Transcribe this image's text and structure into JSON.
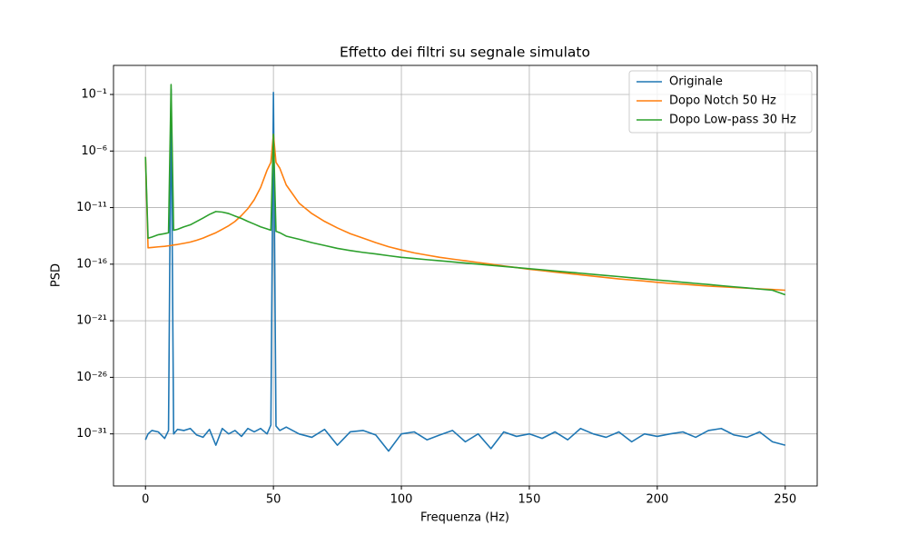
{
  "chart_data": {
    "type": "line",
    "title": "Effetto dei filtri su segnale simulato",
    "xlabel": "Frequenza (Hz)",
    "ylabel": "PSD",
    "yscale": "log",
    "grid": true,
    "legend": "upper right",
    "xlim": [
      -12.5,
      262.5
    ],
    "xticks": [
      0,
      50,
      100,
      150,
      200,
      250
    ],
    "ylim": [
      2.5e-36,
      37
    ],
    "yticks": [
      {
        "value": 0.1,
        "label": "10⁻¹"
      },
      {
        "value": 1e-06,
        "label": "10⁻⁶"
      },
      {
        "value": 1e-11,
        "label": "10⁻¹¹"
      },
      {
        "value": 1e-16,
        "label": "10⁻¹⁶"
      },
      {
        "value": 1e-21,
        "label": "10⁻²¹"
      },
      {
        "value": 1e-26,
        "label": "10⁻²⁶"
      },
      {
        "value": 1e-31,
        "label": "10⁻³¹"
      }
    ],
    "x": [
      0,
      1,
      2.5,
      5,
      7.5,
      9,
      10,
      11,
      12.5,
      15,
      17.5,
      20,
      22.5,
      25,
      27.5,
      30,
      32.5,
      35,
      37.5,
      40,
      42.5,
      45,
      47.5,
      49,
      50,
      51,
      52.5,
      55,
      60,
      65,
      70,
      75,
      80,
      85,
      90,
      95,
      100,
      105,
      110,
      115,
      120,
      125,
      130,
      135,
      140,
      145,
      150,
      155,
      160,
      165,
      170,
      175,
      180,
      185,
      190,
      195,
      200,
      205,
      210,
      215,
      220,
      225,
      230,
      235,
      240,
      245,
      250
    ],
    "series": [
      {
        "name": "Originale",
        "color": "#1f77b4",
        "values": [
          3e-32,
          1e-31,
          2e-31,
          1.5e-31,
          4e-32,
          2e-31,
          0.3,
          1e-31,
          2.5e-31,
          2e-31,
          3e-31,
          8e-32,
          5e-32,
          2.5e-31,
          1e-32,
          3e-31,
          1e-31,
          2e-31,
          6e-32,
          3e-31,
          1.5e-31,
          3e-31,
          1e-31,
          6e-31,
          0.15,
          5e-31,
          2e-31,
          4e-31,
          1e-31,
          5e-32,
          2.5e-31,
          1e-32,
          1.5e-31,
          2e-31,
          8e-32,
          3e-33,
          1e-31,
          1.5e-31,
          3e-32,
          8e-32,
          2e-31,
          2e-32,
          1e-31,
          5e-33,
          1.5e-31,
          6e-32,
          1e-31,
          4e-32,
          1.5e-31,
          3e-32,
          3e-31,
          1e-31,
          5e-32,
          1.5e-31,
          2e-32,
          1e-31,
          6e-32,
          1e-31,
          1.5e-31,
          5e-32,
          2e-31,
          3e-31,
          8e-32,
          5e-32,
          1.5e-31,
          2e-32,
          1e-32
        ]
      },
      {
        "name": "Dopo Notch 50 Hz",
        "color": "#ff7f0e",
        "values": [
          3e-07,
          2.8e-15,
          3e-15,
          3.4e-15,
          3.8e-15,
          4.2e-15,
          4.5e-15,
          5e-15,
          5.5e-15,
          7e-15,
          9e-15,
          1.3e-14,
          2e-14,
          3.5e-14,
          6e-14,
          1.2e-13,
          2.5e-13,
          6e-13,
          2e-12,
          8e-12,
          5e-11,
          6e-10,
          2e-08,
          1e-07,
          3e-05,
          1e-07,
          3e-08,
          1e-09,
          2.5e-11,
          3e-12,
          6e-13,
          1.6e-13,
          5e-14,
          2e-14,
          8e-15,
          3.5e-15,
          1.8e-15,
          1e-15,
          6.3e-16,
          4e-16,
          2.8e-16,
          2e-16,
          1.4e-16,
          1e-16,
          7e-17,
          5e-17,
          3.5e-17,
          2.7e-17,
          2e-17,
          1.5e-17,
          1.15e-17,
          8.7e-18,
          6.6e-18,
          5e-18,
          4e-18,
          3.2e-18,
          2.5e-18,
          2e-18,
          1.7e-18,
          1.4e-18,
          1.15e-18,
          1e-18,
          8.7e-19,
          7.6e-19,
          6.6e-19,
          5.8e-19,
          5e-19
        ]
      },
      {
        "name": "Dopo Low-pass 30 Hz",
        "color": "#2ca02c",
        "values": [
          3e-07,
          2e-14,
          2.5e-14,
          4e-14,
          5e-14,
          6e-14,
          0.75,
          1e-13,
          1.2e-13,
          2e-13,
          3e-13,
          6e-13,
          1.2e-12,
          2.5e-12,
          4.5e-12,
          4e-12,
          3e-12,
          1.8e-12,
          1.1e-12,
          6e-13,
          3.5e-13,
          2e-13,
          1.3e-13,
          1e-13,
          3e-05,
          8e-14,
          6e-14,
          3e-14,
          1.6e-14,
          8e-15,
          4.5e-15,
          2.5e-15,
          1.6e-15,
          1.1e-15,
          8e-16,
          5.6e-16,
          4e-16,
          3.2e-16,
          2.5e-16,
          2e-16,
          1.6e-16,
          1.26e-16,
          1e-16,
          8e-17,
          6.3e-17,
          5e-17,
          4e-17,
          3.2e-17,
          2.5e-17,
          2e-17,
          1.6e-17,
          1.26e-17,
          1e-17,
          8e-18,
          6.3e-18,
          5e-18,
          4e-18,
          3.2e-18,
          2.5e-18,
          2e-18,
          1.6e-18,
          1.26e-18,
          1e-18,
          8e-19,
          6.3e-19,
          5e-19,
          2e-19
        ]
      }
    ]
  }
}
